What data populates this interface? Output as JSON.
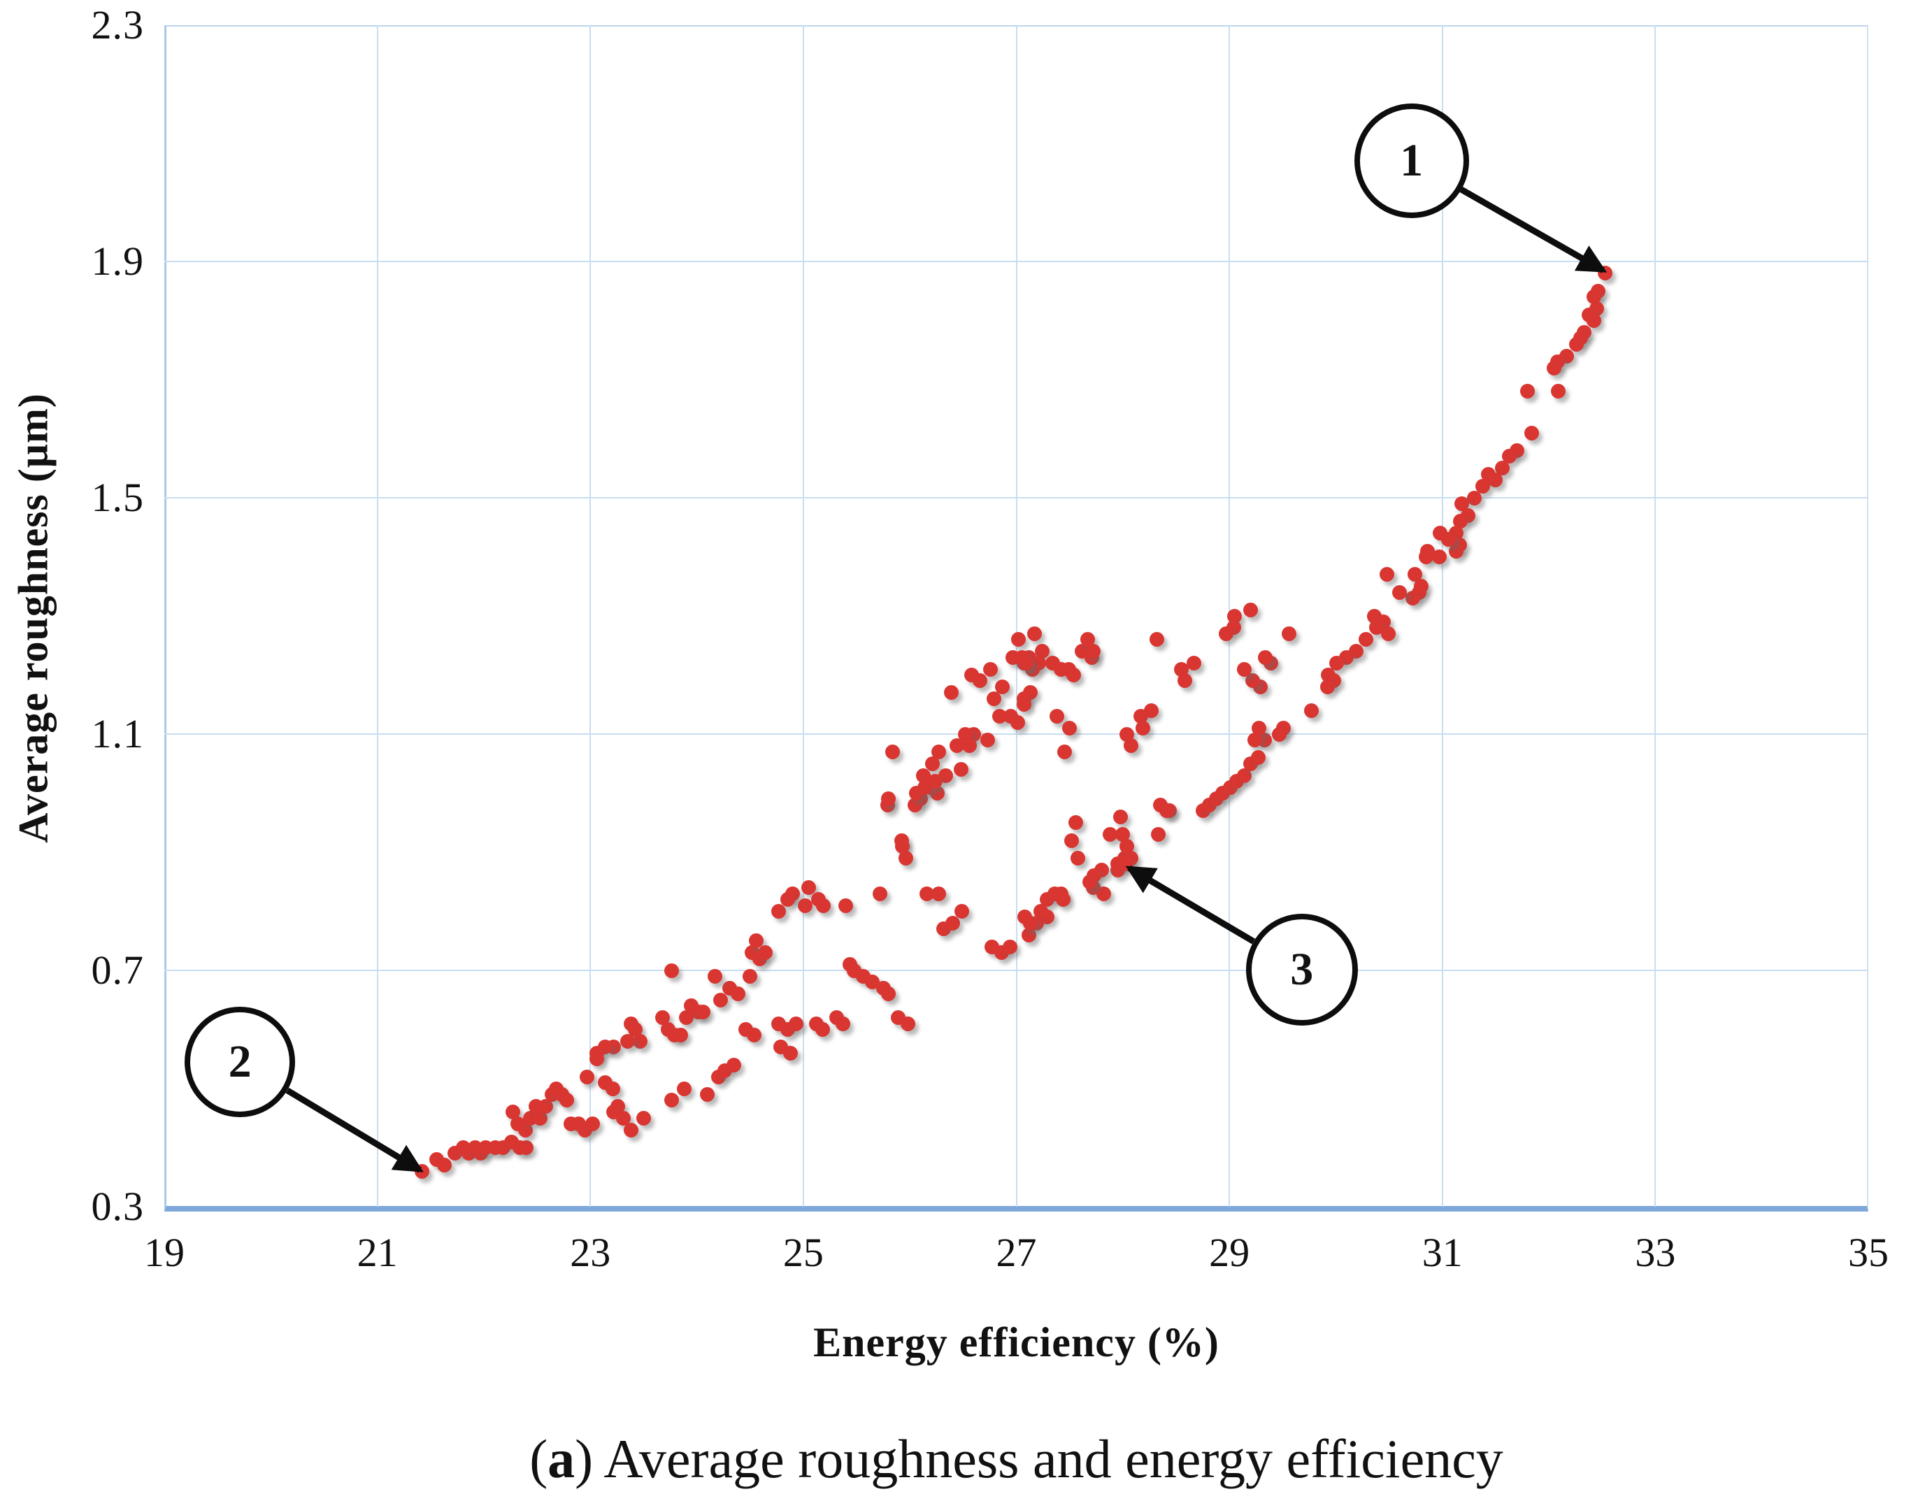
{
  "caption": {
    "open": "(",
    "bold": "a",
    "rest": ") Average roughness and energy efficiency"
  },
  "chart_data": {
    "type": "scatter",
    "title": "",
    "xlabel": "Energy efficiency (%)",
    "ylabel": "Average roughness (μm)",
    "xlim": [
      19,
      35
    ],
    "ylim": [
      0.3,
      2.3
    ],
    "x_ticks": [
      19,
      21,
      23,
      25,
      27,
      29,
      31,
      33,
      35
    ],
    "y_ticks": [
      2.3,
      1.9,
      1.5,
      1.1,
      0.7,
      0.3
    ],
    "grid": true,
    "legend": "none",
    "marker_color": "#d93531",
    "grid_color": "#c9ddf1",
    "axis_color": "#7ea8da",
    "annotation_color": "#0d0d0d",
    "annotations": [
      {
        "label": "1",
        "circle_x": 30.71,
        "circle_y": 2.07,
        "radius_px": 82,
        "target_x": 32.51,
        "target_y": 1.885
      },
      {
        "label": "2",
        "circle_x": 19.71,
        "circle_y": 0.545,
        "radius_px": 79,
        "target_x": 21.4,
        "target_y": 0.362
      },
      {
        "label": "3",
        "circle_x": 29.68,
        "circle_y": 0.701,
        "radius_px": 80,
        "target_x": 28.06,
        "target_y": 0.873
      }
    ],
    "points": [
      [
        32.53,
        1.88
      ],
      [
        32.46,
        1.85
      ],
      [
        32.42,
        1.84
      ],
      [
        32.45,
        1.82
      ],
      [
        32.38,
        1.81
      ],
      [
        32.42,
        1.8
      ],
      [
        32.33,
        1.78
      ],
      [
        32.3,
        1.77
      ],
      [
        32.26,
        1.76
      ],
      [
        32.17,
        1.74
      ],
      [
        32.08,
        1.73
      ],
      [
        32.05,
        1.72
      ],
      [
        31.8,
        1.68
      ],
      [
        32.09,
        1.68
      ],
      [
        31.84,
        1.61
      ],
      [
        31.7,
        1.58
      ],
      [
        31.63,
        1.57
      ],
      [
        31.56,
        1.55
      ],
      [
        31.43,
        1.54
      ],
      [
        31.5,
        1.53
      ],
      [
        31.38,
        1.52
      ],
      [
        31.3,
        1.5
      ],
      [
        31.18,
        1.49
      ],
      [
        31.24,
        1.47
      ],
      [
        31.17,
        1.46
      ],
      [
        31.13,
        1.44
      ],
      [
        31.16,
        1.42
      ],
      [
        31.13,
        1.41
      ],
      [
        30.98,
        1.44
      ],
      [
        31.06,
        1.43
      ],
      [
        30.86,
        1.41
      ],
      [
        30.85,
        1.4
      ],
      [
        30.97,
        1.4
      ],
      [
        30.74,
        1.37
      ],
      [
        30.8,
        1.35
      ],
      [
        30.78,
        1.34
      ],
      [
        30.72,
        1.33
      ],
      [
        30.6,
        1.34
      ],
      [
        30.48,
        1.37
      ],
      [
        30.36,
        1.3
      ],
      [
        30.45,
        1.29
      ],
      [
        30.38,
        1.28
      ],
      [
        30.49,
        1.27
      ],
      [
        30.28,
        1.26
      ],
      [
        30.19,
        1.24
      ],
      [
        30.1,
        1.23
      ],
      [
        30.01,
        1.22
      ],
      [
        29.93,
        1.2
      ],
      [
        29.98,
        1.19
      ],
      [
        29.92,
        1.18
      ],
      [
        29.77,
        1.14
      ],
      [
        29.56,
        1.27
      ],
      [
        29.51,
        1.11
      ],
      [
        29.47,
        1.1
      ],
      [
        29.39,
        1.22
      ],
      [
        29.34,
        1.23
      ],
      [
        29.33,
        1.09
      ],
      [
        29.29,
        1.18
      ],
      [
        29.28,
        1.11
      ],
      [
        29.24,
        1.09
      ],
      [
        29.22,
        1.19
      ],
      [
        29.2,
        1.31
      ],
      [
        29.14,
        1.21
      ],
      [
        29.05,
        1.3
      ],
      [
        29.04,
        1.28
      ],
      [
        28.97,
        1.27
      ],
      [
        28.75,
        0.97
      ],
      [
        28.81,
        0.98
      ],
      [
        28.88,
        0.99
      ],
      [
        28.94,
        1.0
      ],
      [
        29.01,
        1.01
      ],
      [
        29.07,
        1.02
      ],
      [
        29.14,
        1.03
      ],
      [
        29.2,
        1.05
      ],
      [
        29.27,
        1.06
      ],
      [
        28.32,
        1.26
      ],
      [
        28.55,
        1.21
      ],
      [
        28.67,
        1.22
      ],
      [
        28.58,
        1.19
      ],
      [
        28.04,
        1.1
      ],
      [
        28.17,
        1.13
      ],
      [
        28.27,
        1.14
      ],
      [
        28.08,
        1.08
      ],
      [
        28.19,
        1.11
      ],
      [
        28.35,
        0.98
      ],
      [
        28.44,
        0.97
      ],
      [
        27.98,
        0.96
      ],
      [
        27.95,
        0.88
      ],
      [
        28.02,
        0.89
      ],
      [
        27.95,
        0.87
      ],
      [
        27.56,
        0.95
      ],
      [
        27.52,
        0.92
      ],
      [
        27.58,
        0.89
      ],
      [
        27.88,
        0.93
      ],
      [
        27.42,
        0.83
      ],
      [
        27.72,
        0.84
      ],
      [
        27.82,
        0.83
      ],
      [
        27.17,
        1.27
      ],
      [
        27.24,
        1.24
      ],
      [
        27.12,
        1.23
      ],
      [
        27.21,
        1.22
      ],
      [
        27.15,
        1.21
      ],
      [
        27.07,
        1.22
      ],
      [
        27.34,
        1.22
      ],
      [
        27.42,
        1.21
      ],
      [
        27.49,
        1.21
      ],
      [
        27.54,
        1.2
      ],
      [
        27.62,
        1.24
      ],
      [
        27.71,
        1.23
      ],
      [
        27.67,
        1.26
      ],
      [
        27.72,
        1.24
      ],
      [
        27.13,
        1.17
      ],
      [
        27.07,
        1.16
      ],
      [
        27.07,
        1.15
      ],
      [
        27.38,
        1.13
      ],
      [
        27.5,
        1.11
      ],
      [
        27.45,
        1.07
      ],
      [
        27.02,
        1.26
      ],
      [
        26.58,
        1.2
      ],
      [
        26.66,
        1.19
      ],
      [
        26.76,
        1.21
      ],
      [
        26.97,
        1.23
      ],
      [
        27.05,
        1.23
      ],
      [
        27.09,
        1.22
      ],
      [
        26.87,
        1.18
      ],
      [
        26.79,
        1.16
      ],
      [
        26.39,
        1.17
      ],
      [
        26.84,
        1.13
      ],
      [
        26.95,
        1.13
      ],
      [
        27.01,
        1.12
      ],
      [
        26.6,
        1.1
      ],
      [
        26.52,
        1.1
      ],
      [
        26.44,
        1.08
      ],
      [
        26.56,
        1.08
      ],
      [
        26.73,
        1.09
      ],
      [
        26.27,
        1.07
      ],
      [
        25.84,
        1.07
      ],
      [
        26.21,
        1.05
      ],
      [
        26.13,
        1.03
      ],
      [
        26.34,
        1.03
      ],
      [
        26.48,
        1.04
      ],
      [
        26.2,
        1.01
      ],
      [
        26.1,
        0.99
      ],
      [
        26.26,
        1.0
      ],
      [
        25.79,
        0.98
      ],
      [
        26.05,
        0.98
      ],
      [
        25.92,
        0.92
      ],
      [
        25.93,
        0.91
      ],
      [
        25.96,
        0.89
      ],
      [
        25.8,
        0.99
      ],
      [
        26.06,
        1.0
      ],
      [
        26.14,
        1.01
      ],
      [
        26.24,
        1.02
      ],
      [
        25.05,
        0.84
      ],
      [
        24.9,
        0.83
      ],
      [
        25.02,
        0.81
      ],
      [
        24.77,
        0.8
      ],
      [
        24.85,
        0.82
      ],
      [
        25.14,
        0.82
      ],
      [
        25.19,
        0.81
      ],
      [
        25.4,
        0.81
      ],
      [
        25.72,
        0.83
      ],
      [
        26.16,
        0.83
      ],
      [
        26.27,
        0.83
      ],
      [
        26.32,
        0.77
      ],
      [
        26.4,
        0.78
      ],
      [
        26.49,
        0.8
      ],
      [
        27.08,
        0.79
      ],
      [
        27.12,
        0.76
      ],
      [
        26.77,
        0.74
      ],
      [
        26.86,
        0.73
      ],
      [
        26.94,
        0.74
      ],
      [
        25.44,
        0.71
      ],
      [
        25.48,
        0.7
      ],
      [
        25.56,
        0.69
      ],
      [
        25.65,
        0.68
      ],
      [
        25.75,
        0.67
      ],
      [
        25.8,
        0.66
      ],
      [
        25.89,
        0.62
      ],
      [
        25.98,
        0.61
      ],
      [
        24.52,
        0.73
      ],
      [
        24.56,
        0.75
      ],
      [
        24.59,
        0.72
      ],
      [
        24.64,
        0.73
      ],
      [
        24.5,
        0.69
      ],
      [
        24.31,
        0.67
      ],
      [
        24.39,
        0.66
      ],
      [
        24.22,
        0.65
      ],
      [
        24.17,
        0.69
      ],
      [
        23.76,
        0.7
      ],
      [
        23.95,
        0.64
      ],
      [
        24.01,
        0.63
      ],
      [
        24.06,
        0.63
      ],
      [
        23.9,
        0.62
      ],
      [
        23.68,
        0.62
      ],
      [
        23.73,
        0.6
      ],
      [
        23.79,
        0.59
      ],
      [
        23.85,
        0.59
      ],
      [
        23.38,
        0.61
      ],
      [
        23.42,
        0.6
      ],
      [
        23.47,
        0.58
      ],
      [
        23.35,
        0.58
      ],
      [
        23.22,
        0.57
      ],
      [
        23.14,
        0.57
      ],
      [
        23.06,
        0.56
      ],
      [
        23.06,
        0.55
      ],
      [
        22.97,
        0.52
      ],
      [
        24.46,
        0.6
      ],
      [
        24.54,
        0.59
      ],
      [
        24.77,
        0.61
      ],
      [
        24.85,
        0.6
      ],
      [
        24.93,
        0.61
      ],
      [
        24.79,
        0.57
      ],
      [
        24.88,
        0.56
      ],
      [
        25.12,
        0.61
      ],
      [
        25.18,
        0.6
      ],
      [
        25.31,
        0.62
      ],
      [
        25.37,
        0.61
      ],
      [
        23.14,
        0.51
      ],
      [
        23.21,
        0.5
      ],
      [
        23.26,
        0.47
      ],
      [
        23.22,
        0.46
      ],
      [
        23.31,
        0.45
      ],
      [
        23.38,
        0.43
      ],
      [
        23.5,
        0.45
      ],
      [
        23.76,
        0.48
      ],
      [
        23.88,
        0.5
      ],
      [
        24.1,
        0.49
      ],
      [
        24.2,
        0.52
      ],
      [
        24.26,
        0.53
      ],
      [
        24.35,
        0.54
      ],
      [
        21.42,
        0.36
      ],
      [
        21.56,
        0.38
      ],
      [
        21.63,
        0.37
      ],
      [
        21.73,
        0.39
      ],
      [
        21.81,
        0.4
      ],
      [
        21.86,
        0.39
      ],
      [
        21.92,
        0.4
      ],
      [
        21.97,
        0.39
      ],
      [
        22.02,
        0.4
      ],
      [
        22.11,
        0.4
      ],
      [
        22.18,
        0.4
      ],
      [
        22.26,
        0.41
      ],
      [
        22.34,
        0.4
      ],
      [
        22.4,
        0.4
      ],
      [
        22.27,
        0.46
      ],
      [
        22.32,
        0.44
      ],
      [
        22.39,
        0.43
      ],
      [
        22.44,
        0.45
      ],
      [
        22.49,
        0.47
      ],
      [
        22.53,
        0.45
      ],
      [
        22.58,
        0.47
      ],
      [
        22.64,
        0.49
      ],
      [
        22.68,
        0.5
      ],
      [
        22.73,
        0.49
      ],
      [
        22.78,
        0.48
      ],
      [
        22.82,
        0.44
      ],
      [
        22.89,
        0.44
      ],
      [
        22.95,
        0.43
      ],
      [
        23.02,
        0.44
      ],
      [
        28.0,
        0.93
      ],
      [
        28.04,
        0.91
      ],
      [
        28.08,
        0.89
      ],
      [
        28.03,
        0.88
      ],
      [
        27.8,
        0.87
      ],
      [
        27.73,
        0.86
      ],
      [
        27.69,
        0.85
      ],
      [
        27.29,
        0.82
      ],
      [
        27.36,
        0.83
      ],
      [
        27.44,
        0.82
      ],
      [
        27.23,
        0.8
      ],
      [
        27.29,
        0.79
      ],
      [
        27.19,
        0.78
      ],
      [
        27.13,
        0.78
      ],
      [
        28.33,
        0.93
      ],
      [
        28.41,
        0.97
      ]
    ]
  }
}
